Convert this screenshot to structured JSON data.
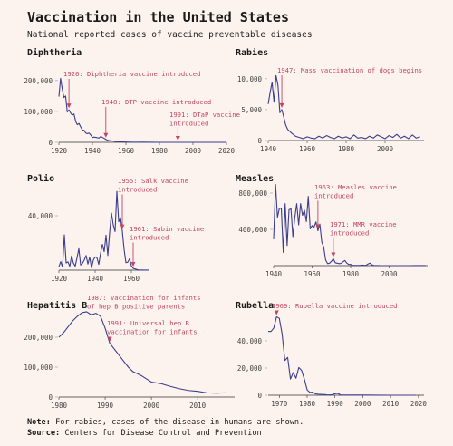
{
  "title": "Vaccination in the United States",
  "subtitle": "National reported cases of vaccine preventable diseases",
  "notes": [
    {
      "label": "Note:",
      "text": "For rabies, cases of the disease in humans are shown."
    },
    {
      "label": "Source:",
      "text": "Centers for Disease Control and Prevention"
    }
  ],
  "chart_data": [
    {
      "type": "line",
      "title": "Diphtheria",
      "color": "#3b3d8c",
      "annotation_color": "#c4455e",
      "x": [
        1920,
        1921,
        1922,
        1923,
        1924,
        1925,
        1926,
        1927,
        1928,
        1929,
        1930,
        1931,
        1932,
        1933,
        1934,
        1935,
        1936,
        1937,
        1938,
        1939,
        1940,
        1941,
        1942,
        1943,
        1944,
        1945,
        1946,
        1947,
        1948,
        1949,
        1950,
        1955,
        1960,
        1965,
        1970,
        1975,
        1980,
        1985,
        1990,
        1995,
        2000,
        2005,
        2010,
        2015,
        2020
      ],
      "values": [
        148000,
        207000,
        172000,
        145000,
        150000,
        98000,
        105000,
        95000,
        88000,
        92000,
        68000,
        57000,
        61000,
        50000,
        40000,
        39000,
        30000,
        28000,
        30000,
        24000,
        15500,
        17000,
        16000,
        14800,
        14000,
        19000,
        16000,
        13000,
        9500,
        7000,
        5800,
        2000,
        900,
        160,
        430,
        300,
        3,
        3,
        4,
        0,
        1,
        0,
        0,
        0,
        0
      ],
      "xlim": [
        1920,
        2020
      ],
      "xticks": [
        1920,
        1940,
        1960,
        1980,
        2000,
        2020
      ],
      "ylim": [
        0,
        220000
      ],
      "yticks": [
        0,
        {
          "value": 100000,
          "label": "100,000"
        },
        {
          "value": 200000,
          "label": "200,000"
        }
      ],
      "annotations": [
        {
          "x": 1926,
          "text": [
            "1926: Diphtheria vaccine introduced"
          ]
        },
        {
          "x": 1948,
          "text": [
            "1948: DTP vaccine introduced"
          ]
        },
        {
          "x": 1991,
          "text": [
            "1991: DTaP vaccine",
            "introduced"
          ]
        }
      ]
    },
    {
      "type": "line",
      "title": "Rabies",
      "color": "#3b3d8c",
      "annotation_color": "#c4455e",
      "x": [
        1940,
        1941,
        1942,
        1943,
        1944,
        1945,
        1946,
        1947,
        1948,
        1949,
        1950,
        1952,
        1954,
        1956,
        1958,
        1960,
        1962,
        1964,
        1966,
        1968,
        1970,
        1972,
        1974,
        1976,
        1978,
        1980,
        1982,
        1984,
        1986,
        1988,
        1990,
        1992,
        1994,
        1996,
        1998,
        2000,
        2002,
        2004,
        2006,
        2008,
        2010,
        2012,
        2014,
        2016,
        2018
      ],
      "values": [
        5900,
        7800,
        9400,
        6200,
        10500,
        9000,
        4500,
        5000,
        3800,
        2500,
        1800,
        1200,
        700,
        500,
        300,
        600,
        400,
        300,
        700,
        400,
        800,
        500,
        300,
        700,
        400,
        600,
        300,
        900,
        400,
        500,
        300,
        700,
        400,
        900,
        600,
        300,
        800,
        500,
        1000,
        400,
        700,
        300,
        900,
        400,
        600
      ],
      "xlim": [
        1940,
        2020
      ],
      "xticks": [
        1940,
        1960,
        1980,
        2000
      ],
      "ylim": [
        0,
        11000
      ],
      "yticks": [
        0,
        {
          "value": 5000,
          "label": "5,000"
        },
        {
          "value": 10000,
          "label": "10,000"
        }
      ],
      "annotations": [
        {
          "x": 1947,
          "text": [
            "1947: Mass vaccination of dogs begins"
          ]
        }
      ]
    },
    {
      "type": "line",
      "title": "Polio",
      "color": "#3b3d8c",
      "annotation_color": "#c4455e",
      "x": [
        1920,
        1921,
        1922,
        1923,
        1924,
        1925,
        1926,
        1927,
        1928,
        1929,
        1930,
        1931,
        1932,
        1933,
        1934,
        1935,
        1936,
        1937,
        1938,
        1939,
        1940,
        1941,
        1942,
        1943,
        1944,
        1945,
        1946,
        1947,
        1948,
        1949,
        1950,
        1951,
        1952,
        1953,
        1954,
        1955,
        1956,
        1957,
        1958,
        1959,
        1960,
        1961,
        1962,
        1963,
        1964,
        1965,
        1966,
        1967,
        1968,
        1969,
        1970
      ],
      "values": [
        2500,
        6300,
        2200,
        26000,
        5300,
        6100,
        2800,
        10500,
        5200,
        2900,
        9200,
        15800,
        3800,
        5000,
        7500,
        10800,
        4500,
        9500,
        1700,
        7300,
        9800,
        9100,
        4200,
        12400,
        19000,
        13600,
        25700,
        10800,
        27700,
        42000,
        33300,
        28400,
        57900,
        35600,
        38500,
        28900,
        15100,
        5500,
        5800,
        8400,
        3200,
        1300,
        900,
        450,
        120,
        70,
        110,
        40,
        50,
        20,
        30
      ],
      "xlim": [
        1920,
        1970
      ],
      "xticks": [
        1920,
        1940,
        1960
      ],
      "ylim": [
        0,
        60000
      ],
      "yticks": [
        {
          "value": 40000,
          "label": "40,000"
        }
      ],
      "annotations": [
        {
          "x": 1955,
          "text": [
            "1955: Salk vaccine",
            "introduced"
          ]
        },
        {
          "x": 1961,
          "text": [
            "1961: Sabin vaccine",
            "introduced"
          ]
        }
      ]
    },
    {
      "type": "line",
      "title": "Measles",
      "color": "#3b3d8c",
      "annotation_color": "#c4455e",
      "x": [
        1940,
        1941,
        1942,
        1943,
        1944,
        1945,
        1946,
        1947,
        1948,
        1949,
        1950,
        1951,
        1952,
        1953,
        1954,
        1955,
        1956,
        1957,
        1958,
        1959,
        1960,
        1961,
        1962,
        1963,
        1964,
        1965,
        1966,
        1967,
        1968,
        1969,
        1970,
        1971,
        1972,
        1973,
        1974,
        1975,
        1976,
        1977,
        1978,
        1979,
        1980,
        1981,
        1982,
        1983,
        1984,
        1985,
        1986,
        1987,
        1988,
        1989,
        1990,
        1991,
        1992,
        1995,
        2000,
        2005,
        2010,
        2014,
        2019
      ],
      "values": [
        291000,
        894000,
        534000,
        633000,
        630000,
        146000,
        683000,
        222000,
        616000,
        626000,
        319000,
        530000,
        683000,
        449000,
        683000,
        555000,
        612000,
        486000,
        763000,
        406000,
        442000,
        424000,
        482000,
        385000,
        458000,
        262000,
        204000,
        63000,
        22000,
        26000,
        47000,
        75000,
        32000,
        27000,
        22000,
        24000,
        41000,
        57000,
        27000,
        14000,
        13500,
        3100,
        1700,
        1500,
        2600,
        2800,
        6300,
        3700,
        3400,
        18000,
        28000,
        9600,
        2200,
        309,
        86,
        66,
        63,
        667,
        1282
      ],
      "xlim": [
        1940,
        2020
      ],
      "xticks": [
        1940,
        1960,
        1980,
        2000
      ],
      "ylim": [
        0,
        900000
      ],
      "yticks": [
        {
          "value": 400000,
          "label": "400,000"
        },
        {
          "value": 800000,
          "label": "800,000"
        }
      ],
      "annotations": [
        {
          "x": 1963,
          "text": [
            "1963: Measles vaccine",
            "introduced"
          ]
        },
        {
          "x": 1971,
          "text": [
            "1971: MMR vaccine",
            "introduced"
          ]
        }
      ]
    },
    {
      "type": "line",
      "title": "Hepatitis B",
      "color": "#3b3d8c",
      "annotation_color": "#c4455e",
      "x": [
        1980,
        1981,
        1982,
        1983,
        1984,
        1985,
        1986,
        1987,
        1988,
        1989,
        1990,
        1991,
        1992,
        1993,
        1994,
        1995,
        1996,
        1997,
        1998,
        1999,
        2000,
        2002,
        2004,
        2006,
        2008,
        2010,
        2012,
        2014,
        2016
      ],
      "values": [
        200000,
        215000,
        235000,
        255000,
        270000,
        282000,
        285000,
        275000,
        280000,
        270000,
        230000,
        180000,
        160000,
        140000,
        120000,
        100000,
        85000,
        78000,
        70000,
        60000,
        50000,
        45000,
        36000,
        28000,
        22000,
        19000,
        14000,
        13000,
        14000
      ],
      "xlim": [
        1980,
        2018
      ],
      "xticks": [
        1980,
        1990,
        2000,
        2010
      ],
      "ylim": [
        0,
        300000
      ],
      "yticks": [
        0,
        {
          "value": 100000,
          "label": "100,000"
        },
        {
          "value": 200000,
          "label": "200,000"
        }
      ],
      "annotations": [
        {
          "x": 1987,
          "text": [
            "1987: Vaccination for infants",
            "of hep B positive parents"
          ]
        },
        {
          "x": 1991,
          "text": [
            "1991: Universal hep B",
            "vaccination for infants"
          ]
        }
      ]
    },
    {
      "type": "line",
      "title": "Rubella",
      "color": "#3b3d8c",
      "annotation_color": "#c4455e",
      "x": [
        1966,
        1967,
        1968,
        1969,
        1970,
        1971,
        1972,
        1973,
        1974,
        1975,
        1976,
        1977,
        1978,
        1979,
        1980,
        1981,
        1982,
        1983,
        1984,
        1985,
        1986,
        1987,
        1988,
        1989,
        1990,
        1991,
        1992,
        1995,
        2000,
        2005,
        2010,
        2015,
        2019
      ],
      "values": [
        46975,
        46888,
        49371,
        57686,
        56552,
        45086,
        25507,
        27804,
        11917,
        16652,
        12491,
        20395,
        18269,
        11795,
        3904,
        2077,
        2325,
        970,
        752,
        630,
        551,
        306,
        225,
        396,
        1125,
        1401,
        160,
        128,
        176,
        11,
        5,
        5,
        6
      ],
      "xlim": [
        1966,
        2022
      ],
      "xticks": [
        1970,
        1980,
        1990,
        2000,
        2010,
        2020
      ],
      "ylim": [
        0,
        60000
      ],
      "yticks": [
        0,
        {
          "value": 20000,
          "label": "20,000"
        },
        {
          "value": 40000,
          "label": "40,000"
        }
      ],
      "annotations": [
        {
          "x": 1969,
          "text": [
            "1969: Rubella vaccine introduced"
          ]
        }
      ]
    }
  ]
}
